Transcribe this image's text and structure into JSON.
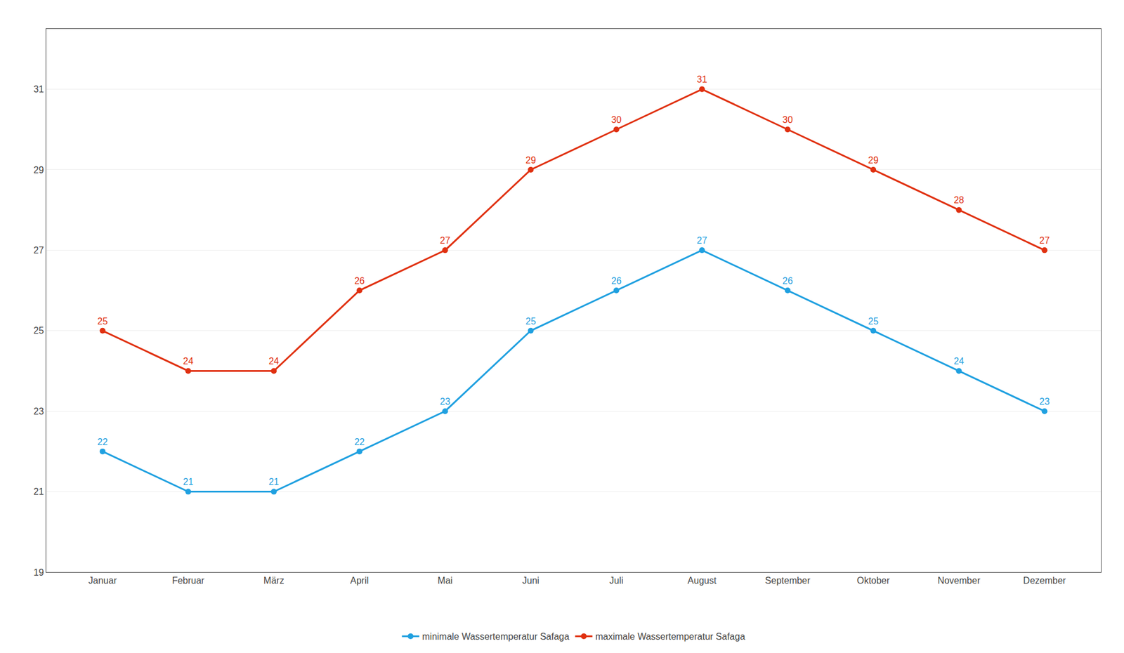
{
  "chart_data": {
    "type": "line",
    "categories": [
      "Januar",
      "Februar",
      "März",
      "April",
      "Mai",
      "Juni",
      "Juli",
      "August",
      "September",
      "Oktober",
      "November",
      "Dezember"
    ],
    "series": [
      {
        "name": "minimale Wassertemperatur Safaga",
        "color": "#1FA0E0",
        "values": [
          22,
          21,
          21,
          22,
          23,
          25,
          26,
          27,
          26,
          25,
          24,
          23
        ]
      },
      {
        "name": "maximale Wassertemperatur Safaga",
        "color": "#E03010",
        "values": [
          25,
          24,
          24,
          26,
          27,
          29,
          30,
          31,
          30,
          29,
          28,
          27
        ]
      }
    ],
    "ylim": [
      19,
      32.5
    ],
    "yticks": [
      19,
      21,
      23,
      25,
      27,
      29,
      31
    ],
    "grid": true,
    "legend": "bottom",
    "data_labels": true,
    "marker": "circle"
  }
}
